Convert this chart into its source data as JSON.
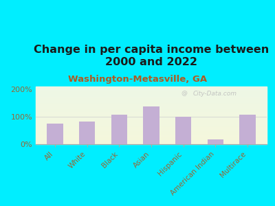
{
  "title": "Change in per capita income between\n2000 and 2022",
  "subtitle": "Washington-Metasville, GA",
  "categories": [
    "All",
    "White",
    "Black",
    "Asian",
    "Hispanic",
    "American Indian",
    "Multirace"
  ],
  "values": [
    75,
    82,
    107,
    138,
    100,
    17,
    107
  ],
  "bar_color": "#c4afd4",
  "title_fontsize": 11.5,
  "subtitle_fontsize": 9.5,
  "subtitle_color": "#b05a20",
  "title_color": "#1a1a1a",
  "tick_label_color": "#996633",
  "ylabel_color": "#996633",
  "background_outer": "#00eeff",
  "ylim": [
    0,
    210
  ],
  "yticks": [
    0,
    100,
    200
  ],
  "ytick_labels": [
    "0%",
    "100%",
    "200%"
  ],
  "watermark": "City-Data.com",
  "watermark_color": "#bbbbbb"
}
